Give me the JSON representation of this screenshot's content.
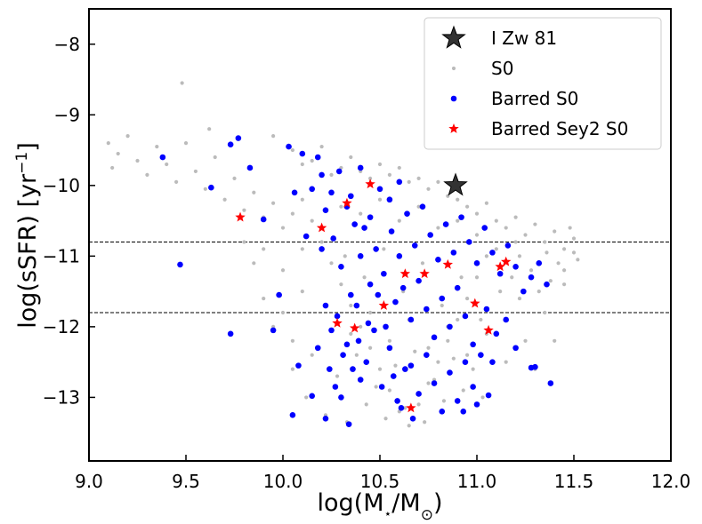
{
  "chart_data": {
    "type": "scatter",
    "title": "",
    "xlabel": "log(M⋆/M⊙)",
    "xlabel_parts": {
      "pre": "log(M",
      "sub": "⋆",
      "mid": "/M",
      "sub2": "⊙",
      "post": ")"
    },
    "ylabel": "log(sSFR) [yr⁻¹]",
    "ylabel_parts": {
      "pre": "log(sSFR) [yr",
      "sup": "−1",
      "post": "]"
    },
    "xlim": [
      9.0,
      12.0
    ],
    "ylim": [
      -13.9,
      -7.5
    ],
    "xticks": [
      9.0,
      9.5,
      10.0,
      10.5,
      11.0,
      11.5,
      12.0
    ],
    "xtick_labels": [
      "9.0",
      "9.5",
      "10.0",
      "10.5",
      "11.0",
      "11.5",
      "12.0"
    ],
    "yticks": [
      -8,
      -9,
      -10,
      -11,
      -12,
      -13
    ],
    "ytick_labels": [
      "−8",
      "−9",
      "−10",
      "−11",
      "−12",
      "−13"
    ],
    "reference_lines": [
      {
        "axis": "y",
        "value": -10.8,
        "style": "dashed"
      },
      {
        "axis": "y",
        "value": -11.8,
        "style": "dashed"
      }
    ],
    "legend_position": "top-right",
    "series": [
      {
        "name": "I Zw 81",
        "marker": "star-large",
        "color": "#000000",
        "points": [
          [
            10.89,
            -10.0
          ]
        ]
      },
      {
        "name": "S0",
        "marker": "dot-small",
        "color": "#bbbbbb",
        "points": [
          [
            9.1,
            -9.4
          ],
          [
            9.12,
            -9.75
          ],
          [
            9.15,
            -9.55
          ],
          [
            9.2,
            -9.3
          ],
          [
            9.25,
            -9.65
          ],
          [
            9.3,
            -9.85
          ],
          [
            9.35,
            -9.45
          ],
          [
            9.4,
            -9.7
          ],
          [
            9.45,
            -9.95
          ],
          [
            9.5,
            -9.4
          ],
          [
            9.55,
            -9.8
          ],
          [
            9.6,
            -10.05
          ],
          [
            9.65,
            -9.6
          ],
          [
            9.7,
            -10.2
          ],
          [
            9.75,
            -9.9
          ],
          [
            9.8,
            -10.35
          ],
          [
            9.85,
            -10.1
          ],
          [
            9.9,
            -10.45
          ],
          [
            9.95,
            -10.25
          ],
          [
            10.0,
            -10.6
          ],
          [
            9.48,
            -8.55
          ],
          [
            9.62,
            -9.2
          ],
          [
            9.95,
            -9.3
          ],
          [
            10.05,
            -9.5
          ],
          [
            10.1,
            -9.7
          ],
          [
            10.15,
            -9.65
          ],
          [
            10.2,
            -9.45
          ],
          [
            10.25,
            -9.85
          ],
          [
            10.3,
            -9.75
          ],
          [
            10.35,
            -9.6
          ],
          [
            10.4,
            -9.8
          ],
          [
            10.45,
            -9.9
          ],
          [
            10.5,
            -9.7
          ],
          [
            10.55,
            -9.85
          ],
          [
            10.6,
            -9.75
          ],
          [
            10.65,
            -9.95
          ],
          [
            10.7,
            -9.9
          ],
          [
            10.75,
            -10.05
          ],
          [
            10.8,
            -9.95
          ],
          [
            10.85,
            -10.15
          ],
          [
            10.9,
            -10.2
          ],
          [
            10.95,
            -10.3
          ],
          [
            11.0,
            -10.4
          ],
          [
            11.05,
            -10.25
          ],
          [
            11.1,
            -10.5
          ],
          [
            11.15,
            -10.6
          ],
          [
            11.2,
            -10.45
          ],
          [
            11.25,
            -10.7
          ],
          [
            11.3,
            -10.55
          ],
          [
            11.35,
            -10.8
          ],
          [
            11.4,
            -10.65
          ],
          [
            11.45,
            -10.9
          ],
          [
            11.5,
            -10.75
          ],
          [
            11.52,
            -11.05
          ],
          [
            11.48,
            -10.6
          ],
          [
            11.42,
            -11.1
          ],
          [
            11.36,
            -10.95
          ],
          [
            11.28,
            -11.2
          ],
          [
            11.22,
            -11.0
          ],
          [
            11.18,
            -11.3
          ],
          [
            10.1,
            -10.2
          ],
          [
            10.15,
            -10.5
          ],
          [
            10.2,
            -10.8
          ],
          [
            10.25,
            -11.1
          ],
          [
            10.3,
            -11.4
          ],
          [
            10.35,
            -11.7
          ],
          [
            10.4,
            -12.0
          ],
          [
            10.45,
            -12.3
          ],
          [
            10.5,
            -12.6
          ],
          [
            10.55,
            -12.9
          ],
          [
            10.6,
            -13.2
          ],
          [
            10.65,
            -13.4
          ],
          [
            10.7,
            -13.1
          ],
          [
            10.75,
            -12.8
          ],
          [
            10.8,
            -12.5
          ],
          [
            10.85,
            -12.2
          ],
          [
            10.9,
            -11.9
          ],
          [
            10.95,
            -11.6
          ],
          [
            11.0,
            -11.3
          ],
          [
            11.05,
            -11.0
          ],
          [
            10.05,
            -12.6
          ],
          [
            10.12,
            -13.0
          ],
          [
            10.18,
            -12.3
          ],
          [
            10.22,
            -13.25
          ],
          [
            10.28,
            -12.7
          ],
          [
            10.33,
            -13.35
          ],
          [
            10.38,
            -12.4
          ],
          [
            10.43,
            -13.1
          ],
          [
            10.48,
            -12.85
          ],
          [
            10.53,
            -13.3
          ],
          [
            10.58,
            -12.55
          ],
          [
            10.63,
            -13.15
          ],
          [
            10.68,
            -12.35
          ],
          [
            10.73,
            -13.35
          ],
          [
            10.78,
            -12.75
          ],
          [
            10.83,
            -13.05
          ],
          [
            10.88,
            -12.45
          ],
          [
            10.93,
            -12.9
          ],
          [
            10.98,
            -12.6
          ],
          [
            11.03,
            -13.0
          ],
          [
            10.3,
            -10.3
          ],
          [
            10.4,
            -10.4
          ],
          [
            10.5,
            -10.2
          ],
          [
            10.6,
            -10.5
          ],
          [
            10.7,
            -10.3
          ],
          [
            10.8,
            -10.6
          ],
          [
            10.9,
            -10.5
          ],
          [
            11.0,
            -10.7
          ],
          [
            11.1,
            -10.9
          ],
          [
            11.2,
            -10.8
          ],
          [
            10.32,
            -11.0
          ],
          [
            10.42,
            -11.3
          ],
          [
            10.52,
            -10.9
          ],
          [
            10.62,
            -11.5
          ],
          [
            10.72,
            -11.1
          ],
          [
            10.82,
            -11.7
          ],
          [
            10.92,
            -11.3
          ],
          [
            11.02,
            -11.9
          ],
          [
            11.12,
            -11.5
          ],
          [
            11.22,
            -11.6
          ],
          [
            10.35,
            -12.1
          ],
          [
            10.45,
            -11.8
          ],
          [
            10.55,
            -12.2
          ],
          [
            10.65,
            -11.9
          ],
          [
            10.75,
            -12.3
          ],
          [
            10.85,
            -12.0
          ],
          [
            10.95,
            -12.4
          ],
          [
            11.05,
            -12.1
          ],
          [
            11.15,
            -12.5
          ],
          [
            11.25,
            -12.2
          ],
          [
            9.9,
            -11.6
          ],
          [
            9.95,
            -12.0
          ],
          [
            10.0,
            -11.8
          ],
          [
            10.05,
            -12.2
          ],
          [
            10.1,
            -11.5
          ],
          [
            10.15,
            -12.4
          ],
          [
            11.3,
            -12.6
          ],
          [
            11.35,
            -11.8
          ],
          [
            11.4,
            -12.2
          ],
          [
            11.45,
            -11.4
          ],
          [
            9.8,
            -10.8
          ],
          [
            9.85,
            -11.1
          ],
          [
            9.9,
            -10.9
          ],
          [
            10.0,
            -11.2
          ],
          [
            10.05,
            -10.4
          ],
          [
            10.1,
            -10.9
          ],
          [
            11.45,
            -11.2
          ],
          [
            11.5,
            -10.95
          ],
          [
            11.38,
            -11.35
          ],
          [
            11.32,
            -11.5
          ]
        ]
      },
      {
        "name": "Barred S0",
        "marker": "dot",
        "color": "#0000ff",
        "points": [
          [
            9.38,
            -9.6
          ],
          [
            9.47,
            -11.12
          ],
          [
            9.63,
            -10.03
          ],
          [
            9.73,
            -9.42
          ],
          [
            9.77,
            -9.33
          ],
          [
            9.73,
            -12.1
          ],
          [
            9.83,
            -9.75
          ],
          [
            9.9,
            -10.48
          ],
          [
            9.98,
            -11.55
          ],
          [
            9.95,
            -12.05
          ],
          [
            10.03,
            -9.45
          ],
          [
            10.06,
            -10.1
          ],
          [
            10.1,
            -9.55
          ],
          [
            10.15,
            -10.05
          ],
          [
            10.18,
            -9.6
          ],
          [
            10.22,
            -10.35
          ],
          [
            10.25,
            -10.1
          ],
          [
            10.29,
            -9.8
          ],
          [
            10.33,
            -10.3
          ],
          [
            10.37,
            -10.55
          ],
          [
            10.2,
            -9.85
          ],
          [
            10.12,
            -10.72
          ],
          [
            10.08,
            -12.55
          ],
          [
            10.05,
            -13.25
          ],
          [
            10.15,
            -12.98
          ],
          [
            10.24,
            -12.6
          ],
          [
            10.3,
            -13.0
          ],
          [
            10.34,
            -13.38
          ],
          [
            10.22,
            -13.3
          ],
          [
            10.4,
            -12.75
          ],
          [
            10.26,
            -10.75
          ],
          [
            10.3,
            -11.15
          ],
          [
            10.35,
            -11.55
          ],
          [
            10.4,
            -11.0
          ],
          [
            10.45,
            -11.4
          ],
          [
            10.42,
            -10.6
          ],
          [
            10.48,
            -10.9
          ],
          [
            10.52,
            -11.25
          ],
          [
            10.56,
            -10.65
          ],
          [
            10.6,
            -11.0
          ],
          [
            10.28,
            -11.85
          ],
          [
            10.33,
            -12.25
          ],
          [
            10.38,
            -11.7
          ],
          [
            10.43,
            -12.5
          ],
          [
            10.47,
            -12.05
          ],
          [
            10.51,
            -12.85
          ],
          [
            10.55,
            -12.3
          ],
          [
            10.59,
            -13.05
          ],
          [
            10.63,
            -12.6
          ],
          [
            10.67,
            -13.3
          ],
          [
            10.64,
            -10.4
          ],
          [
            10.68,
            -10.85
          ],
          [
            10.72,
            -10.3
          ],
          [
            10.76,
            -10.7
          ],
          [
            10.8,
            -11.05
          ],
          [
            10.84,
            -10.55
          ],
          [
            10.88,
            -10.95
          ],
          [
            10.92,
            -10.45
          ],
          [
            10.96,
            -10.8
          ],
          [
            11.0,
            -11.1
          ],
          [
            10.62,
            -11.45
          ],
          [
            10.66,
            -11.9
          ],
          [
            10.7,
            -11.35
          ],
          [
            10.74,
            -11.75
          ],
          [
            10.78,
            -12.15
          ],
          [
            10.82,
            -11.6
          ],
          [
            10.86,
            -12.0
          ],
          [
            10.9,
            -11.45
          ],
          [
            10.94,
            -11.85
          ],
          [
            10.98,
            -12.25
          ],
          [
            10.66,
            -12.55
          ],
          [
            10.7,
            -12.95
          ],
          [
            10.74,
            -12.4
          ],
          [
            10.78,
            -12.8
          ],
          [
            10.82,
            -13.2
          ],
          [
            10.86,
            -12.65
          ],
          [
            10.9,
            -13.05
          ],
          [
            10.94,
            -12.5
          ],
          [
            10.98,
            -12.85
          ],
          [
            11.02,
            -12.4
          ],
          [
            11.04,
            -10.6
          ],
          [
            11.08,
            -10.95
          ],
          [
            11.12,
            -11.25
          ],
          [
            11.16,
            -10.85
          ],
          [
            11.2,
            -11.15
          ],
          [
            11.24,
            -11.5
          ],
          [
            11.28,
            -11.3
          ],
          [
            11.32,
            -11.1
          ],
          [
            11.36,
            -11.4
          ],
          [
            11.05,
            -11.75
          ],
          [
            11.1,
            -12.1
          ],
          [
            11.08,
            -12.5
          ],
          [
            11.15,
            -11.9
          ],
          [
            11.2,
            -12.3
          ],
          [
            11.3,
            -12.57
          ],
          [
            11.28,
            -12.58
          ],
          [
            11.38,
            -12.8
          ],
          [
            11.06,
            -12.97
          ],
          [
            11.0,
            -13.1
          ],
          [
            10.93,
            -13.2
          ],
          [
            10.5,
            -10.05
          ],
          [
            10.55,
            -10.2
          ],
          [
            10.6,
            -9.95
          ],
          [
            10.45,
            -10.45
          ],
          [
            10.35,
            -10.15
          ],
          [
            10.4,
            -9.75
          ],
          [
            10.2,
            -10.9
          ],
          [
            10.22,
            -11.7
          ],
          [
            10.25,
            -12.05
          ],
          [
            10.18,
            -12.3
          ],
          [
            10.58,
            -11.65
          ],
          [
            10.53,
            -12.0
          ],
          [
            10.49,
            -11.55
          ],
          [
            10.44,
            -11.95
          ],
          [
            10.39,
            -12.2
          ],
          [
            10.36,
            -12.6
          ],
          [
            10.31,
            -12.4
          ],
          [
            10.27,
            -12.85
          ],
          [
            10.57,
            -12.7
          ],
          [
            10.61,
            -13.15
          ]
        ]
      },
      {
        "name": "Barred Sey2 S0",
        "marker": "star",
        "color": "#ff0000",
        "points": [
          [
            9.78,
            -10.45
          ],
          [
            10.2,
            -10.6
          ],
          [
            10.33,
            -10.25
          ],
          [
            10.45,
            -9.98
          ],
          [
            10.28,
            -11.95
          ],
          [
            10.37,
            -12.02
          ],
          [
            10.52,
            -11.7
          ],
          [
            10.63,
            -11.25
          ],
          [
            10.73,
            -11.25
          ],
          [
            10.85,
            -11.12
          ],
          [
            10.99,
            -11.67
          ],
          [
            11.06,
            -12.05
          ],
          [
            11.12,
            -11.15
          ],
          [
            11.15,
            -11.08
          ],
          [
            10.66,
            -13.15
          ]
        ]
      }
    ]
  }
}
